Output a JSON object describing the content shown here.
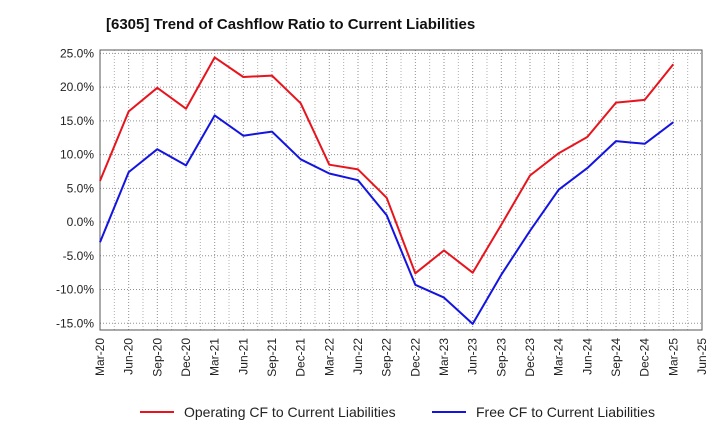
{
  "chart_data": {
    "type": "line",
    "title": "[6305]  Trend of Cashflow Ratio to Current Liabilities",
    "xlabel": "",
    "ylabel": "",
    "categories": [
      "Mar-20",
      "Jun-20",
      "Sep-20",
      "Dec-20",
      "Mar-21",
      "Jun-21",
      "Sep-21",
      "Dec-21",
      "Mar-22",
      "Jun-22",
      "Sep-22",
      "Dec-22",
      "Mar-23",
      "Jun-23",
      "Sep-23",
      "Dec-23",
      "Mar-24",
      "Jun-24",
      "Sep-24",
      "Dec-24",
      "Mar-25",
      "Jun-25"
    ],
    "y_ticks": [
      "25.0%",
      "20.0%",
      "15.0%",
      "10.0%",
      "5.0%",
      "0.0%",
      "-5.0%",
      "-10.0%",
      "-15.0%"
    ],
    "ylim": [
      -16,
      25.5
    ],
    "grid": true,
    "legend_position": "bottom",
    "series": [
      {
        "name": "Operating CF to Current Liabilities",
        "color": "#e8141d",
        "values": [
          6.1,
          16.4,
          19.9,
          16.8,
          24.4,
          21.5,
          21.7,
          17.6,
          8.5,
          7.8,
          3.6,
          -7.6,
          -4.2,
          -7.5,
          -0.4,
          6.9,
          10.2,
          12.6,
          17.7,
          18.1,
          23.4,
          null
        ]
      },
      {
        "name": "Free CF to Current Liabilities",
        "color": "#1414e0",
        "values": [
          -3.0,
          7.4,
          10.8,
          8.4,
          15.8,
          12.8,
          13.4,
          9.3,
          7.2,
          6.2,
          1.0,
          -9.3,
          -11.2,
          -15.1,
          -7.8,
          -1.3,
          4.8,
          8.0,
          12.0,
          11.6,
          14.8,
          null
        ]
      }
    ]
  }
}
